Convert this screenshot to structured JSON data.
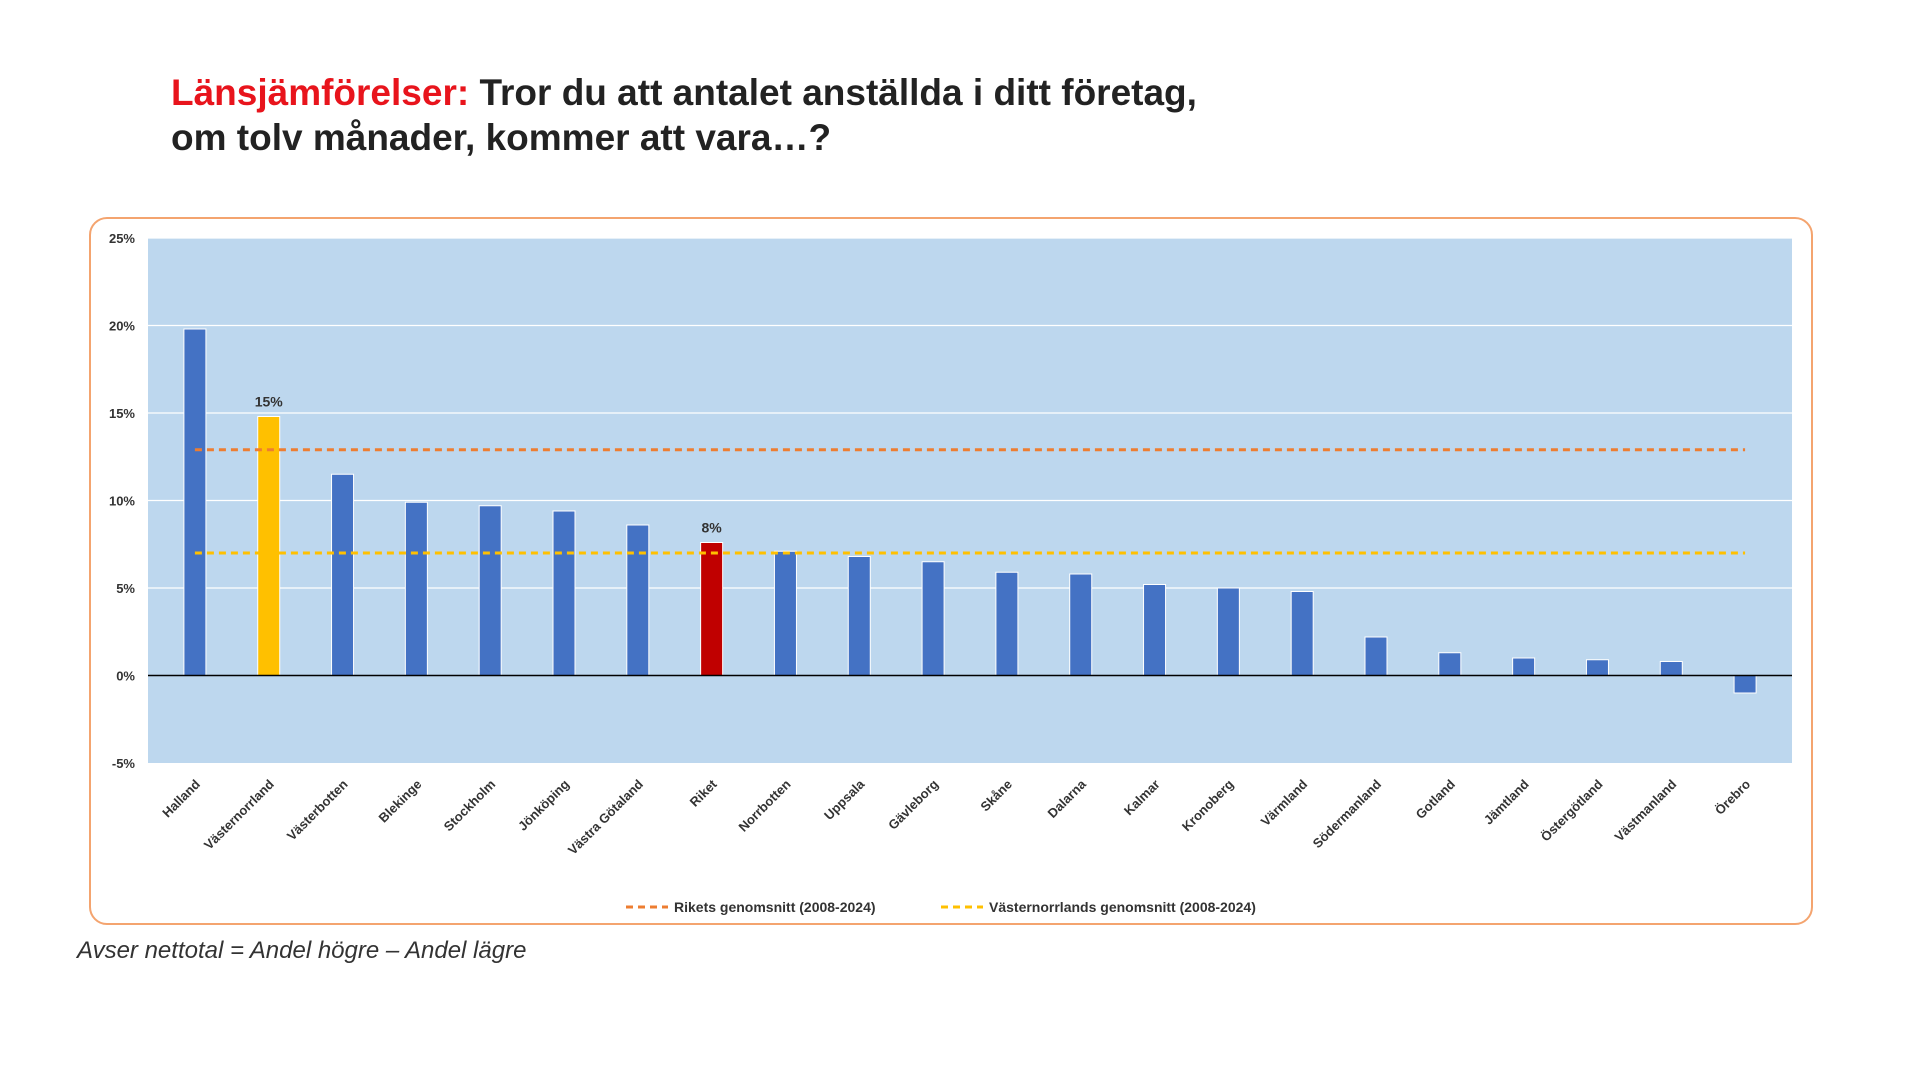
{
  "title": {
    "accent": "Länsjämförelser:",
    "line1": "Tror du att antalet anställda i ditt företag,",
    "line2": "om tolv månader, kommer att vara…?"
  },
  "footnote": "Avser nettotal = Andel högre – Andel lägre",
  "colors": {
    "plot_bg": "#bdd7ee",
    "bar": "#4472c4",
    "highlight_region": "#ffc000",
    "highlight_national": "#c00000",
    "national_avg_line": "#ed7d31",
    "region_avg_line": "#ffc000",
    "accent_title": "#e8141c"
  },
  "chart_data": {
    "type": "bar",
    "title": "",
    "xlabel": "",
    "ylabel": "",
    "ylim": [
      -5,
      25
    ],
    "yticks": [
      -5,
      0,
      5,
      10,
      15,
      20,
      25
    ],
    "ytick_labels": [
      "-5%",
      "0%",
      "5%",
      "10%",
      "15%",
      "20%",
      "25%"
    ],
    "grid": true,
    "categories": [
      "Halland",
      "Västernorrland",
      "Västerbotten",
      "Blekinge",
      "Stockholm",
      "Jönköping",
      "Västra Götaland",
      "Riket",
      "Norrbotten",
      "Uppsala",
      "Gävleborg",
      "Skåne",
      "Dalarna",
      "Kalmar",
      "Kronoberg",
      "Värmland",
      "Södermanland",
      "Gotland",
      "Jämtland",
      "Östergötland",
      "Västmanland",
      "Örebro"
    ],
    "values": [
      19.8,
      14.8,
      11.5,
      9.9,
      9.7,
      9.4,
      8.6,
      7.6,
      7.1,
      6.8,
      6.5,
      5.9,
      5.8,
      5.2,
      5.0,
      4.8,
      2.2,
      1.3,
      1.0,
      0.9,
      0.8,
      -1.0
    ],
    "highlight": {
      "Västernorrland": "region",
      "Riket": "national"
    },
    "data_labels": {
      "Västernorrland": "15%",
      "Riket": "8%"
    },
    "reference_lines": [
      {
        "name": "Rikets genomsnitt (2008-2024)",
        "value": 12.9,
        "style": "dashed",
        "color": "#ed7d31"
      },
      {
        "name": "Västernorrlands genomsnitt (2008-2024)",
        "value": 7.0,
        "style": "dashed",
        "color": "#ffc000"
      }
    ],
    "legend": {
      "placement": "bottom-center",
      "entries": [
        "Rikets genomsnitt (2008-2024)",
        "Västernorrlands genomsnitt (2008-2024)"
      ]
    }
  }
}
